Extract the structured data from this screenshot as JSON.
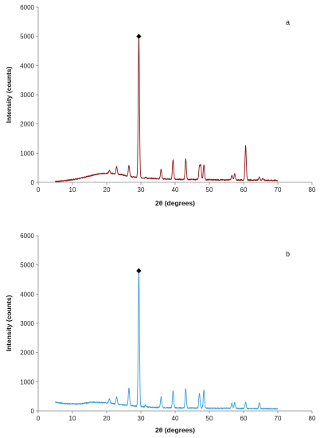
{
  "chart_data": [
    {
      "type": "line",
      "panel_label": "a",
      "xlabel": "2θ (degrees)",
      "ylabel": "Intensity (counts)",
      "xlim": [
        0,
        80
      ],
      "ylim": [
        0,
        6000
      ],
      "xticks": [
        0,
        10,
        20,
        30,
        40,
        50,
        60,
        70,
        80
      ],
      "yticks": [
        0,
        1000,
        2000,
        3000,
        4000,
        5000,
        6000
      ],
      "grid": false,
      "series": [
        {
          "color": "#8b1a1a",
          "baseline": [
            [
              5,
              30
            ],
            [
              8,
              60
            ],
            [
              12,
              130
            ],
            [
              15,
              220
            ],
            [
              18,
              300
            ],
            [
              21,
              320
            ],
            [
              24,
              270
            ],
            [
              26,
              220
            ],
            [
              28,
              180
            ],
            [
              32,
              140
            ],
            [
              36,
              120
            ],
            [
              42,
              100
            ],
            [
              50,
              90
            ],
            [
              60,
              80
            ],
            [
              70,
              70
            ]
          ],
          "peaks": [
            [
              20.8,
              400
            ],
            [
              22.9,
              540
            ],
            [
              26.5,
              580
            ],
            [
              29.4,
              5000
            ],
            [
              31.4,
              180
            ],
            [
              35.9,
              460
            ],
            [
              39.4,
              780
            ],
            [
              43.1,
              800
            ],
            [
              47.1,
              520
            ],
            [
              47.5,
              560
            ],
            [
              48.4,
              600
            ],
            [
              56.6,
              240
            ],
            [
              57.4,
              300
            ],
            [
              60.6,
              1280
            ],
            [
              64.6,
              180
            ],
            [
              65.6,
              140
            ]
          ]
        }
      ],
      "markers": [
        {
          "x": 29.4,
          "y": 5000,
          "shape": "diamond"
        }
      ]
    },
    {
      "type": "line",
      "panel_label": "b",
      "xlabel": "2θ (degrees)",
      "ylabel": "Intensity (counts)",
      "xlim": [
        0,
        80
      ],
      "ylim": [
        0,
        6000
      ],
      "xticks": [
        0,
        10,
        20,
        30,
        40,
        50,
        60,
        70,
        80
      ],
      "yticks": [
        0,
        1000,
        2000,
        3000,
        4000,
        5000,
        6000
      ],
      "grid": false,
      "series": [
        {
          "color": "#3a9fd8",
          "baseline": [
            [
              5,
              300
            ],
            [
              8,
              250
            ],
            [
              12,
              240
            ],
            [
              16,
              300
            ],
            [
              20,
              280
            ],
            [
              24,
              220
            ],
            [
              28,
              170
            ],
            [
              32,
              130
            ],
            [
              38,
              110
            ],
            [
              45,
              100
            ],
            [
              55,
              90
            ],
            [
              65,
              80
            ],
            [
              70,
              70
            ]
          ],
          "peaks": [
            [
              20.8,
              420
            ],
            [
              22.9,
              480
            ],
            [
              26.5,
              780
            ],
            [
              29.4,
              4800
            ],
            [
              31.4,
              200
            ],
            [
              35.9,
              480
            ],
            [
              39.4,
              700
            ],
            [
              43.1,
              750
            ],
            [
              47.1,
              600
            ],
            [
              48.4,
              700
            ],
            [
              56.6,
              260
            ],
            [
              57.4,
              280
            ],
            [
              60.6,
              300
            ],
            [
              64.6,
              280
            ]
          ]
        }
      ],
      "markers": [
        {
          "x": 29.4,
          "y": 4800,
          "shape": "diamond"
        }
      ]
    }
  ]
}
